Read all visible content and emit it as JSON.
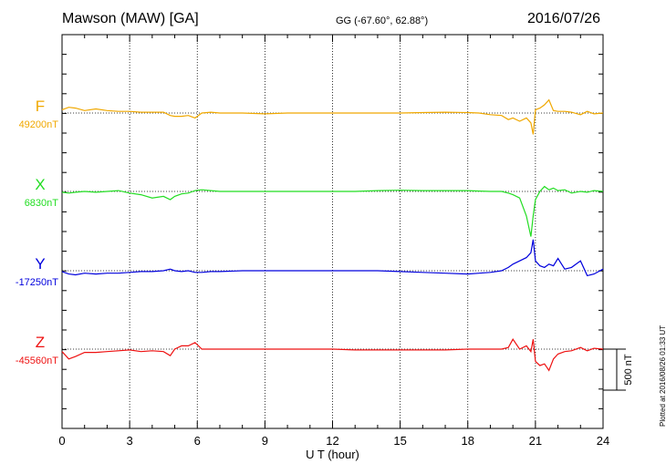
{
  "header": {
    "title": "Mawson (MAW)  [GA]",
    "coords": "GG (-67.60°,  62.88°)",
    "date": "2016/07/26"
  },
  "footer": {
    "plotted": "Plotted at 2016/08/26 01:33 UT"
  },
  "chart_data": {
    "type": "line",
    "xlabel": "U T (hour)",
    "xlim": [
      0,
      24
    ],
    "xticks": [
      0,
      3,
      6,
      9,
      12,
      15,
      18,
      21,
      24
    ],
    "scale_bar": {
      "value": 500,
      "label": "500 nT"
    },
    "series": [
      {
        "name": "F",
        "baseline_label": "49200nT",
        "color": "#f0a800",
        "x": [
          0,
          0.3,
          0.6,
          1,
          1.5,
          2,
          2.5,
          3,
          3.5,
          4,
          4.5,
          4.8,
          5,
          5.3,
          5.6,
          5.9,
          6.2,
          6.6,
          7,
          8,
          9,
          10,
          11,
          12,
          13,
          14,
          15,
          16,
          17,
          18,
          18.5,
          19,
          19.5,
          19.8,
          20,
          20.3,
          20.6,
          20.8,
          20.9,
          21,
          21.2,
          21.4,
          21.6,
          21.8,
          22,
          22.3,
          22.6,
          23,
          23.3,
          23.6,
          24
        ],
        "y": [
          40,
          70,
          60,
          30,
          50,
          30,
          20,
          20,
          10,
          10,
          10,
          -30,
          -40,
          -40,
          -30,
          -60,
          0,
          10,
          0,
          0,
          -10,
          0,
          0,
          0,
          0,
          0,
          0,
          5,
          10,
          5,
          0,
          -20,
          -30,
          -80,
          -60,
          -100,
          -60,
          -120,
          -260,
          40,
          60,
          100,
          160,
          30,
          20,
          20,
          10,
          -20,
          20,
          -10,
          0
        ]
      },
      {
        "name": "X",
        "baseline_label": "6830nT",
        "color": "#22dd22",
        "x": [
          0,
          0.3,
          0.6,
          1,
          1.5,
          2,
          2.5,
          3,
          3.5,
          4,
          4.5,
          4.8,
          5,
          5.3,
          5.6,
          5.9,
          6.2,
          6.6,
          7,
          8,
          9,
          10,
          11,
          12,
          13,
          14,
          15,
          16,
          17,
          18,
          18.5,
          19,
          19.5,
          19.8,
          20,
          20.3,
          20.6,
          20.8,
          20.9,
          21,
          21.2,
          21.4,
          21.6,
          21.8,
          22,
          22.3,
          22.6,
          23,
          23.3,
          23.6,
          24
        ],
        "y": [
          -10,
          -20,
          -10,
          0,
          -10,
          0,
          10,
          -20,
          -40,
          -80,
          -60,
          -100,
          -60,
          -30,
          -20,
          10,
          20,
          10,
          0,
          0,
          0,
          0,
          0,
          0,
          0,
          10,
          15,
          10,
          10,
          10,
          5,
          0,
          0,
          -20,
          -40,
          -80,
          -300,
          -550,
          -300,
          -100,
          0,
          60,
          20,
          40,
          10,
          20,
          -20,
          0,
          -10,
          10,
          0
        ]
      },
      {
        "name": "Y",
        "baseline_label": "-17250nT",
        "color": "#0000dd",
        "x": [
          0,
          0.3,
          0.6,
          1,
          1.5,
          2,
          2.5,
          3,
          3.5,
          4,
          4.5,
          4.8,
          5,
          5.3,
          5.6,
          5.9,
          6.2,
          6.6,
          7,
          8,
          9,
          10,
          11,
          12,
          13,
          14,
          15,
          16,
          17,
          18,
          18.5,
          19,
          19.5,
          19.8,
          20,
          20.3,
          20.6,
          20.8,
          20.9,
          21,
          21.2,
          21.4,
          21.6,
          21.8,
          22,
          22.3,
          22.6,
          23,
          23.3,
          23.6,
          24
        ],
        "y": [
          -10,
          -40,
          -50,
          -30,
          -40,
          -30,
          -30,
          -20,
          -10,
          -10,
          0,
          20,
          0,
          -10,
          0,
          -20,
          -20,
          -10,
          -10,
          0,
          0,
          0,
          0,
          0,
          0,
          0,
          -10,
          -20,
          -30,
          -40,
          -30,
          -20,
          0,
          40,
          80,
          120,
          160,
          220,
          380,
          120,
          60,
          40,
          80,
          60,
          150,
          20,
          40,
          120,
          -60,
          -40,
          20
        ]
      },
      {
        "name": "Z",
        "baseline_label": "-45560nT",
        "color": "#ee1111",
        "x": [
          0,
          0.3,
          0.6,
          1,
          1.5,
          2,
          2.5,
          3,
          3.5,
          4,
          4.5,
          4.8,
          5,
          5.3,
          5.6,
          5.9,
          6.2,
          6.6,
          7,
          8,
          9,
          10,
          11,
          12,
          13,
          14,
          15,
          16,
          17,
          18,
          18.5,
          19,
          19.5,
          19.8,
          20,
          20.3,
          20.6,
          20.8,
          20.9,
          21,
          21.2,
          21.4,
          21.6,
          21.8,
          22,
          22.3,
          22.6,
          23,
          23.3,
          23.6,
          24
        ],
        "y": [
          -30,
          -120,
          -90,
          -40,
          -40,
          -30,
          -20,
          -10,
          -30,
          -20,
          -30,
          -80,
          0,
          40,
          40,
          80,
          0,
          0,
          0,
          0,
          0,
          0,
          0,
          0,
          -10,
          -10,
          -10,
          -10,
          -10,
          0,
          0,
          0,
          0,
          20,
          120,
          0,
          40,
          -30,
          120,
          -150,
          -200,
          -180,
          -260,
          -120,
          -60,
          -30,
          -20,
          20,
          -20,
          10,
          0
        ]
      }
    ]
  }
}
